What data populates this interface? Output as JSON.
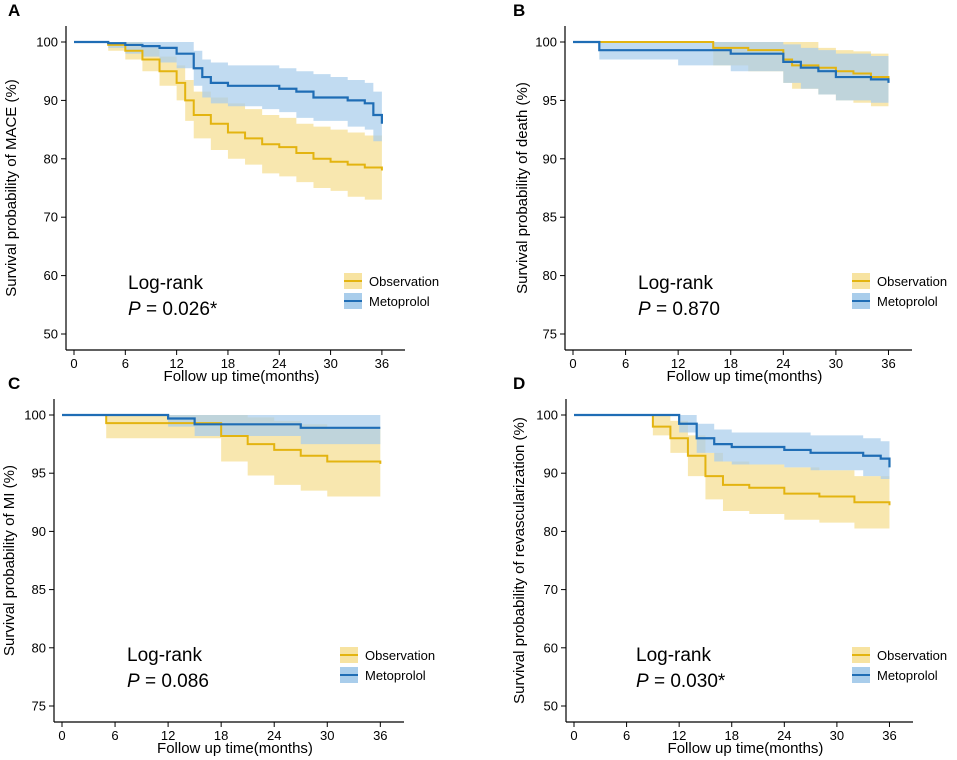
{
  "colors": {
    "observation": "#E3B410",
    "observation_band": "#F7E3A1",
    "metoprolol": "#1F6DB5",
    "metoprolol_band": "#A9CDEB",
    "overlap": "#9DBE9E",
    "axis": "#000000"
  },
  "chart_data": [
    {
      "panel": "A",
      "type": "line",
      "title": "",
      "xlabel": "Follow up time(months)",
      "ylabel": "Survival probability of MACE (%)",
      "xlim": [
        0,
        38
      ],
      "ylim": [
        50,
        100
      ],
      "xticks": [
        0,
        6,
        12,
        18,
        24,
        30,
        36
      ],
      "yticks": [
        50,
        60,
        70,
        80,
        90,
        100
      ],
      "annotation": {
        "title": "Log-rank",
        "p_prefix": "P",
        "p_value": " = 0.026*"
      },
      "legend": {
        "position": "bottom-right",
        "entries": [
          "Observation",
          "Metoprolol"
        ]
      },
      "series": [
        {
          "name": "Observation",
          "x": [
            0,
            4,
            6,
            8,
            10,
            12,
            13,
            14,
            16,
            18,
            20,
            22,
            24,
            26,
            28,
            30,
            32,
            34,
            36
          ],
          "y": [
            100,
            99.5,
            98.5,
            97,
            95,
            93,
            90,
            87.5,
            86,
            84.5,
            83.5,
            82.5,
            82,
            81,
            80,
            79.5,
            79,
            78.5,
            78
          ],
          "lower": [
            100,
            98.5,
            97,
            95,
            92.5,
            90,
            86.5,
            83.5,
            81.5,
            80,
            79,
            77.5,
            77,
            76,
            75,
            74.5,
            73.5,
            73,
            72.5
          ],
          "upper": [
            100,
            100,
            100,
            99,
            97.5,
            96,
            93.5,
            91.5,
            90.5,
            89.5,
            88.5,
            87.5,
            87,
            86,
            85.5,
            85,
            84.5,
            84,
            83.5
          ]
        },
        {
          "name": "Metoprolol",
          "x": [
            0,
            4,
            6,
            8,
            10,
            12,
            14,
            15,
            16,
            18,
            22,
            24,
            26,
            28,
            30,
            32,
            34,
            35,
            36
          ],
          "y": [
            100,
            99.8,
            99.5,
            99.3,
            99,
            98,
            95.5,
            94,
            93,
            92.5,
            92.5,
            92,
            91.5,
            90.5,
            90.5,
            90,
            89.5,
            87.5,
            86
          ],
          "lower": [
            100,
            99,
            98,
            97.5,
            96.5,
            95.5,
            92.5,
            90.5,
            89.5,
            89,
            88.5,
            88,
            87,
            86.5,
            86.5,
            85.5,
            85,
            83,
            82.5
          ],
          "upper": [
            100,
            100,
            100,
            100,
            100,
            100,
            98.5,
            97,
            96.5,
            96,
            96,
            95.5,
            95,
            94.5,
            94,
            93.5,
            93,
            91.5,
            89.5
          ]
        }
      ]
    },
    {
      "panel": "B",
      "type": "line",
      "title": "",
      "xlabel": "Follow up time(months)",
      "ylabel": "Survival probability of death (%)",
      "xlim": [
        0,
        38
      ],
      "ylim": [
        75,
        100
      ],
      "xticks": [
        0,
        6,
        12,
        18,
        24,
        30,
        36
      ],
      "yticks": [
        75,
        80,
        85,
        90,
        95,
        100
      ],
      "annotation": {
        "title": "Log-rank",
        "p_prefix": "P",
        "p_value": " = 0.870"
      },
      "legend": {
        "position": "bottom-right",
        "entries": [
          "Observation",
          "Metoprolol"
        ]
      },
      "series": [
        {
          "name": "Observation",
          "x": [
            0,
            12,
            16,
            20,
            24,
            25,
            28,
            30,
            32,
            34,
            36
          ],
          "y": [
            100,
            100,
            99.5,
            99.3,
            98.5,
            98,
            97.8,
            97.5,
            97.3,
            97,
            96.8
          ],
          "lower": [
            100,
            100,
            98,
            97.5,
            96.5,
            96,
            95.5,
            95,
            94.8,
            94.5,
            94.2
          ],
          "upper": [
            100,
            100,
            100,
            100,
            100,
            100,
            99.5,
            99.3,
            99.2,
            99,
            98.8
          ]
        },
        {
          "name": "Metoprolol",
          "x": [
            0,
            3,
            12,
            18,
            24,
            26,
            28,
            30,
            34,
            36
          ],
          "y": [
            100,
            99.3,
            99.3,
            99,
            98.3,
            97.8,
            97.5,
            97,
            96.8,
            96.5
          ],
          "lower": [
            100,
            98.5,
            98,
            97.5,
            96.5,
            96,
            95.5,
            95,
            94.8,
            94.5
          ],
          "upper": [
            100,
            100,
            100,
            100,
            99.8,
            99.5,
            99.3,
            99,
            98.8,
            98.5
          ]
        }
      ]
    },
    {
      "panel": "C",
      "type": "line",
      "title": "",
      "xlabel": "Follow up time(months)",
      "ylabel": "Survival probability of MI (%)",
      "xlim": [
        0,
        38
      ],
      "ylim": [
        75,
        100
      ],
      "xticks": [
        0,
        6,
        12,
        18,
        24,
        30,
        36
      ],
      "yticks": [
        75,
        80,
        85,
        90,
        95,
        100
      ],
      "annotation": {
        "title": "Log-rank",
        "p_prefix": "P",
        "p_value": " = 0.086"
      },
      "legend": {
        "position": "bottom-right",
        "entries": [
          "Observation",
          "Metoprolol"
        ]
      },
      "series": [
        {
          "name": "Observation",
          "x": [
            0,
            5,
            12,
            18,
            21,
            24,
            27,
            30,
            36
          ],
          "y": [
            100,
            99.3,
            99.3,
            98.2,
            97.5,
            97,
            96.5,
            96,
            95.8
          ],
          "lower": [
            100,
            98,
            98,
            96,
            94.8,
            94,
            93.5,
            93,
            92.7
          ],
          "upper": [
            100,
            100,
            100,
            100,
            99.8,
            99.5,
            99.2,
            98.8,
            98.7
          ]
        },
        {
          "name": "Metoprolol",
          "x": [
            0,
            12,
            15,
            27,
            36
          ],
          "y": [
            100,
            99.7,
            99.2,
            98.9,
            98.9
          ],
          "lower": [
            100,
            99,
            98.2,
            97.5,
            97.5
          ],
          "upper": [
            100,
            100,
            100,
            100,
            100
          ]
        }
      ]
    },
    {
      "panel": "D",
      "type": "line",
      "title": "",
      "xlabel": "Follow up time(months)",
      "ylabel": "Survival probability of revascularization (%)",
      "xlim": [
        0,
        38
      ],
      "ylim": [
        50,
        100
      ],
      "xticks": [
        0,
        6,
        12,
        18,
        24,
        30,
        36
      ],
      "yticks": [
        50,
        60,
        70,
        80,
        90,
        100
      ],
      "annotation": {
        "title": "Log-rank",
        "p_prefix": "P",
        "p_value": " = 0.030*"
      },
      "legend": {
        "position": "bottom-right",
        "entries": [
          "Observation",
          "Metoprolol"
        ]
      },
      "series": [
        {
          "name": "Observation",
          "x": [
            0,
            7,
            9,
            11,
            13,
            15,
            17,
            20,
            24,
            28,
            32,
            36
          ],
          "y": [
            100,
            100,
            98,
            96,
            93,
            89.5,
            88,
            87.5,
            86.5,
            86,
            85,
            84.5
          ],
          "lower": [
            100,
            100,
            96.5,
            93.5,
            89.5,
            85.5,
            83.5,
            83,
            82,
            81.5,
            80.5,
            80
          ],
          "upper": [
            100,
            100,
            100,
            99,
            96.5,
            93.5,
            92,
            91.5,
            91,
            90.5,
            89.5,
            89
          ]
        },
        {
          "name": "Metoprolol",
          "x": [
            0,
            10,
            12,
            14,
            16,
            18,
            24,
            27,
            30,
            33,
            35,
            36
          ],
          "y": [
            100,
            100,
            98.5,
            96,
            95,
            94.5,
            94,
            93.5,
            93.5,
            93,
            92.5,
            91
          ],
          "lower": [
            100,
            100,
            97,
            93.5,
            92,
            91.5,
            91,
            90.5,
            90.5,
            89.5,
            89,
            88
          ],
          "upper": [
            100,
            100,
            100,
            98.5,
            97.5,
            97,
            97,
            96.5,
            96.5,
            96,
            95.5,
            94
          ]
        }
      ]
    }
  ]
}
